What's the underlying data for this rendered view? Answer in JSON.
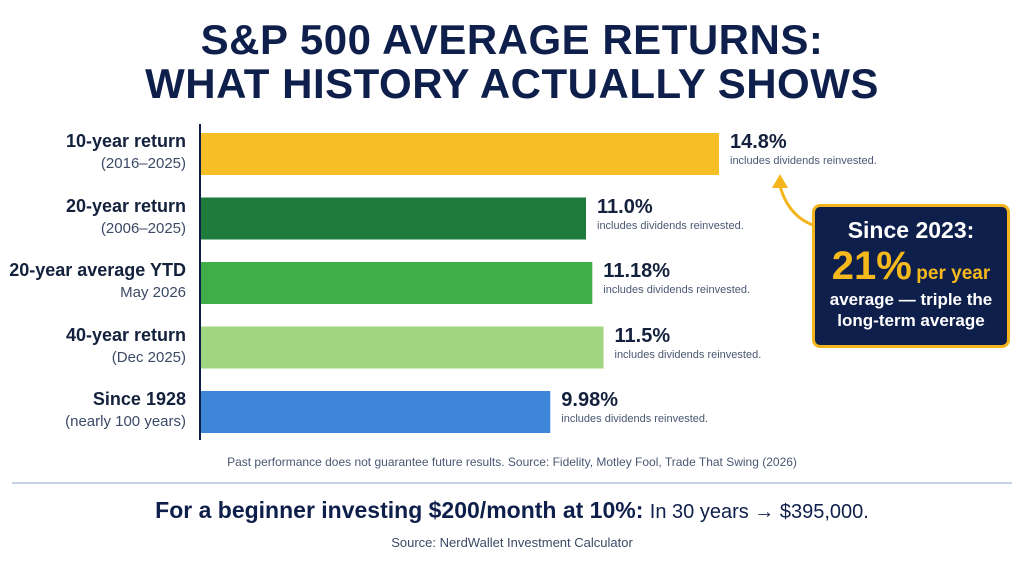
{
  "title_lines": [
    "S&P 500 AVERAGE RETURNS:",
    "WHAT HISTORY ACTUALLY SHOWS"
  ],
  "chart_data": {
    "type": "bar",
    "orientation": "horizontal",
    "categories": [
      {
        "name": "10-year return",
        "sub": "(2016–2025)"
      },
      {
        "name": "20-year return",
        "sub": "(2006–2025)"
      },
      {
        "name": "20-year average YTD",
        "sub": "May 2026"
      },
      {
        "name": "40-year return",
        "sub": "(Dec 2025)"
      },
      {
        "name": "Since 1928",
        "sub": "(nearly 100 years)"
      }
    ],
    "values": [
      14.8,
      11.0,
      11.18,
      11.5,
      9.98
    ],
    "value_labels": [
      "14.8%",
      "11.0%",
      "11.18%",
      "11.5%",
      "9.98%"
    ],
    "note": "includes dividends reinvested.",
    "colors": [
      "#f6bf26",
      "#1e7b3c",
      "#3fae49",
      "#9fd67f",
      "#3d86d8"
    ],
    "grid": false,
    "axis_color": "#0f1f4b"
  },
  "callout": {
    "line1": "Since 2023:",
    "big": "21%",
    "unit": "per year",
    "line3a": "average — triple the",
    "line3b": "long-term average",
    "bg_color": "#0f1f4b",
    "accent_color": "#f3b51b"
  },
  "footnote": "Past performance does not guarantee future results. Source: Fidelity, Motley Fool, Trade That Swing (2026)",
  "bottom": {
    "main_bold": "For a beginner investing $200/month at 10%:",
    "main_rest": "In 30 years → $395,000.",
    "source": "Source: NerdWallet Investment Calculator"
  }
}
